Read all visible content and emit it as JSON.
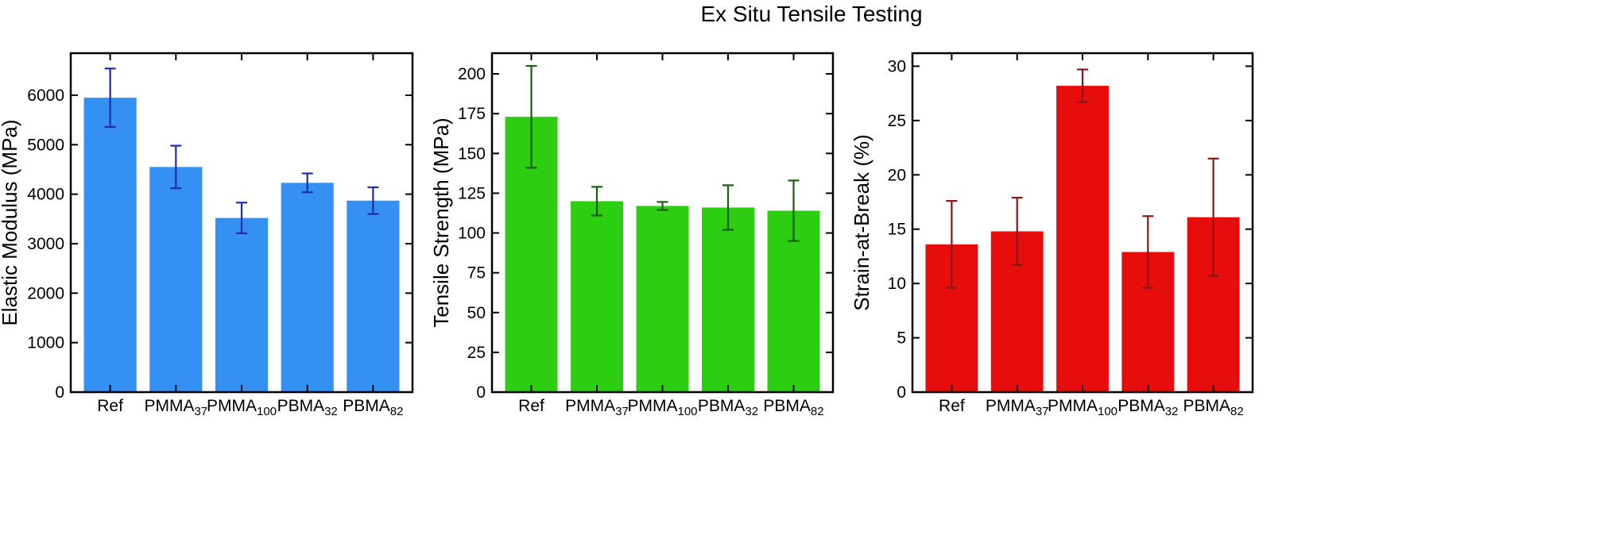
{
  "figure": {
    "title": "Ex Situ Tensile Testing"
  },
  "chart_data": [
    {
      "type": "bar",
      "ylabel": "Elastic Modulus (MPa)",
      "categories": [
        {
          "base": "Ref",
          "sub": ""
        },
        {
          "base": "PMMA",
          "sub": "37"
        },
        {
          "base": "PMMA",
          "sub": "100"
        },
        {
          "base": "PBMA",
          "sub": "32"
        },
        {
          "base": "PBMA",
          "sub": "82"
        }
      ],
      "values": [
        5950,
        4550,
        3520,
        4230,
        3870
      ],
      "errors": [
        590,
        430,
        310,
        190,
        270
      ],
      "ylim": [
        0,
        6850
      ],
      "yticks": [
        0,
        1000,
        2000,
        3000,
        4000,
        5000,
        6000
      ],
      "bar_color": "#3590f3",
      "error_color": "#1f2dab"
    },
    {
      "type": "bar",
      "ylabel": "Tensile Strength (MPa)",
      "categories": [
        {
          "base": "Ref",
          "sub": ""
        },
        {
          "base": "PMMA",
          "sub": "37"
        },
        {
          "base": "PMMA",
          "sub": "100"
        },
        {
          "base": "PBMA",
          "sub": "32"
        },
        {
          "base": "PBMA",
          "sub": "82"
        }
      ],
      "values": [
        173,
        120,
        117,
        116,
        114
      ],
      "errors": [
        32,
        9,
        2.5,
        14,
        19
      ],
      "ylim": [
        0,
        213
      ],
      "yticks": [
        0,
        25,
        50,
        75,
        100,
        125,
        150,
        175,
        200
      ],
      "bar_color": "#2dcd12",
      "error_color": "#1b5e0f"
    },
    {
      "type": "bar",
      "ylabel": "Strain-at-Break (%)",
      "categories": [
        {
          "base": "Ref",
          "sub": ""
        },
        {
          "base": "PMMA",
          "sub": "37"
        },
        {
          "base": "PMMA",
          "sub": "100"
        },
        {
          "base": "PBMA",
          "sub": "32"
        },
        {
          "base": "PBMA",
          "sub": "82"
        }
      ],
      "values": [
        13.6,
        14.8,
        28.2,
        12.9,
        16.1
      ],
      "errors": [
        4.0,
        3.1,
        1.5,
        3.3,
        5.4
      ],
      "ylim": [
        0,
        31.2
      ],
      "yticks": [
        0,
        5,
        10,
        15,
        20,
        25,
        30
      ],
      "bar_color": "#e80d0d",
      "error_color": "#8b1515"
    }
  ]
}
